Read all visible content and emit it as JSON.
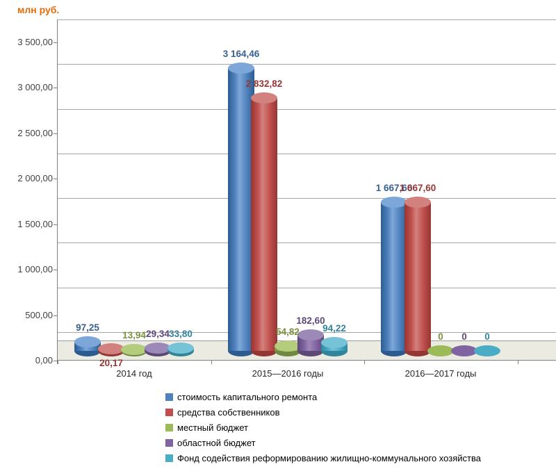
{
  "title": "млн руб.",
  "title_color": "#e36c0a",
  "chart_data": {
    "type": "bar",
    "subtype": "3d-cylinder",
    "title": "млн руб.",
    "xlabel": "",
    "ylabel": "млн руб.",
    "ylim": [
      0,
      3500
    ],
    "ytick_step": 500,
    "yticks": [
      "0,00",
      "500,00",
      "1 000,00",
      "1 500,00",
      "2 000,00",
      "2 500,00",
      "3 000,00",
      "3 500,00"
    ],
    "grid": true,
    "legend_position": "bottom",
    "categories": [
      "2014 год",
      "2015—2016 годы",
      "2016—2017 годы"
    ],
    "series": [
      {
        "name": "стоимость капитального ремонта",
        "values": [
          97.25,
          3164.46,
          1667.6
        ],
        "labels": [
          "97,25",
          "3 164,46",
          "1 667,60"
        ],
        "color": "#4f81bd",
        "dark": "#2c5c8f",
        "light": "#7da7d8",
        "label_color": "#376091"
      },
      {
        "name": "средства собственников",
        "values": [
          20.17,
          2832.82,
          1667.6
        ],
        "labels": [
          "20,17",
          "2 832,82",
          "1 667,60"
        ],
        "color": "#c0504d",
        "dark": "#943634",
        "light": "#d3817e",
        "label_color": "#953734"
      },
      {
        "name": "местный бюджет",
        "values": [
          13.94,
          54.82,
          0
        ],
        "labels": [
          "13,94",
          "54,82",
          "0"
        ],
        "color": "#9bbb59",
        "dark": "#71893f",
        "light": "#b3cd7d",
        "label_color": "#76923c"
      },
      {
        "name": "областной бюджет",
        "values": [
          29.34,
          182.6,
          0
        ],
        "labels": [
          "29,34",
          "182,60",
          "0"
        ],
        "color": "#8064a2",
        "dark": "#5e4876",
        "light": "#9d89b8",
        "label_color": "#5f497a"
      },
      {
        "name": "Фонд содействия реформированию жилищно-коммунального хозяйства",
        "values": [
          33.8,
          94.22,
          0
        ],
        "labels": [
          "33,80",
          "94,22",
          "0"
        ],
        "color": "#4bacc6",
        "dark": "#31859b",
        "light": "#76c2d7",
        "label_color": "#31849b"
      }
    ],
    "label_below": [
      {
        "series": 1,
        "category": 0
      }
    ]
  }
}
